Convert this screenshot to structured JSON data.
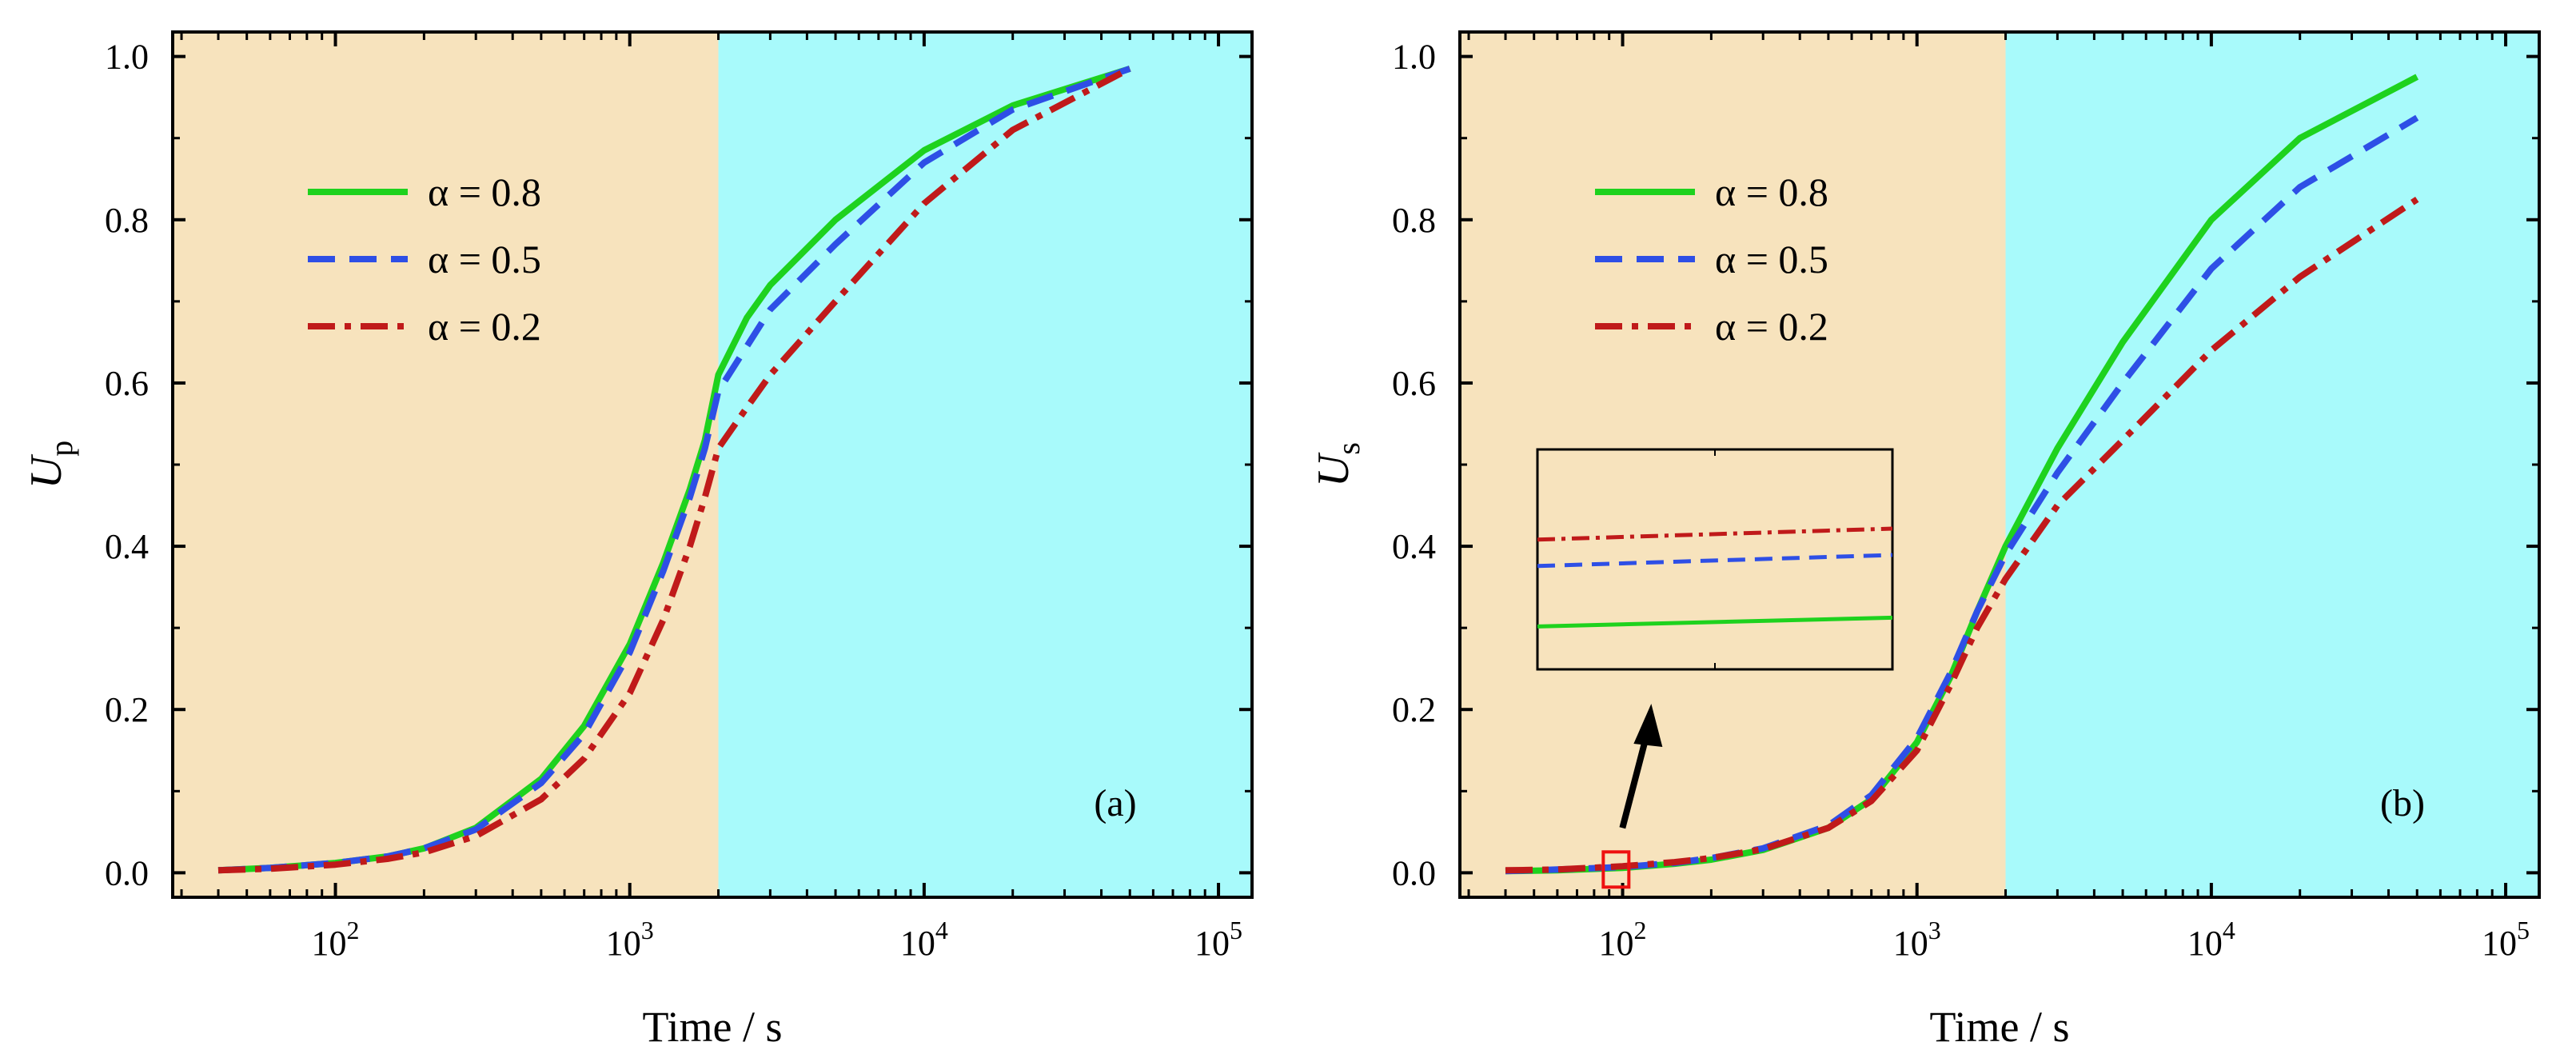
{
  "chart_data": [
    {
      "type": "line",
      "panel_label": "(a)",
      "xlabel": "Time / s",
      "ylabel": "U",
      "ylabel_sub": "p",
      "xscale": "log",
      "xlim": [
        28,
        130000
      ],
      "ylim": [
        -0.03,
        1.03
      ],
      "yticks": [
        0.0,
        0.2,
        0.4,
        0.6,
        0.8,
        1.0
      ],
      "ytick_labels": [
        "0.0",
        "0.2",
        "0.4",
        "0.6",
        "0.8",
        "1.0"
      ],
      "xtick_exponents": [
        2,
        3,
        4,
        5
      ],
      "xtick_base": "10",
      "regions": [
        {
          "from": 28,
          "to": 2000,
          "color": "#f7e3bd"
        },
        {
          "from": 2000,
          "to": 130000,
          "color": "#a8fafb"
        }
      ],
      "legend_position": "upper-left",
      "series": [
        {
          "name": "α = 0.8",
          "color": "#1ed21e",
          "style": "solid",
          "x": [
            40,
            60,
            100,
            150,
            200,
            300,
            500,
            700,
            1000,
            1300,
            1600,
            1800,
            2000,
            2500,
            3000,
            5000,
            10000,
            20000,
            50000
          ],
          "y": [
            0.003,
            0.006,
            0.012,
            0.02,
            0.03,
            0.055,
            0.115,
            0.18,
            0.28,
            0.38,
            0.47,
            0.53,
            0.61,
            0.68,
            0.72,
            0.8,
            0.885,
            0.94,
            0.985
          ]
        },
        {
          "name": "α = 0.5",
          "color": "#2e4fe6",
          "style": "dashed",
          "x": [
            40,
            60,
            100,
            150,
            200,
            300,
            500,
            700,
            1000,
            1300,
            1600,
            1800,
            2000,
            2500,
            3000,
            5000,
            10000,
            20000,
            50000
          ],
          "y": [
            0.003,
            0.006,
            0.012,
            0.02,
            0.03,
            0.053,
            0.11,
            0.17,
            0.27,
            0.37,
            0.46,
            0.52,
            0.59,
            0.645,
            0.69,
            0.77,
            0.87,
            0.935,
            0.985
          ]
        },
        {
          "name": "α = 0.2",
          "color": "#c01a1a",
          "style": "dashdot",
          "x": [
            40,
            60,
            100,
            150,
            200,
            300,
            500,
            700,
            1000,
            1300,
            1600,
            1800,
            2000,
            2500,
            3000,
            5000,
            10000,
            20000,
            50000
          ],
          "y": [
            0.003,
            0.005,
            0.01,
            0.017,
            0.025,
            0.045,
            0.09,
            0.14,
            0.22,
            0.31,
            0.4,
            0.46,
            0.52,
            0.57,
            0.61,
            0.7,
            0.82,
            0.91,
            0.985
          ]
        }
      ]
    },
    {
      "type": "line",
      "panel_label": "(b)",
      "xlabel": "Time / s",
      "ylabel": "U",
      "ylabel_sub": "s",
      "xscale": "log",
      "xlim": [
        28,
        130000
      ],
      "ylim": [
        -0.03,
        1.03
      ],
      "yticks": [
        0.0,
        0.2,
        0.4,
        0.6,
        0.8,
        1.0
      ],
      "ytick_labels": [
        "0.0",
        "0.2",
        "0.4",
        "0.6",
        "0.8",
        "1.0"
      ],
      "xtick_exponents": [
        2,
        3,
        4,
        5
      ],
      "xtick_base": "10",
      "regions": [
        {
          "from": 28,
          "to": 2000,
          "color": "#f7e3bd"
        },
        {
          "from": 2000,
          "to": 130000,
          "color": "#a8fafb"
        }
      ],
      "legend_position": "upper-left",
      "annotations": {
        "highlight_box_at": {
          "x": 95,
          "y": 0.004
        },
        "inset": "zoomed view near t ≈ 10^2 s; α = 0.2 highest, α = 0.5 middle, α = 0.8 lowest"
      },
      "series": [
        {
          "name": "α = 0.8",
          "color": "#1ed21e",
          "style": "solid",
          "x": [
            40,
            60,
            100,
            150,
            200,
            300,
            500,
            700,
            1000,
            1300,
            1600,
            2000,
            3000,
            5000,
            10000,
            20000,
            50000
          ],
          "y": [
            0.002,
            0.003,
            0.006,
            0.011,
            0.016,
            0.028,
            0.055,
            0.09,
            0.16,
            0.24,
            0.32,
            0.4,
            0.52,
            0.65,
            0.8,
            0.9,
            0.975
          ]
        },
        {
          "name": "α = 0.5",
          "color": "#2e4fe6",
          "style": "dashed",
          "x": [
            40,
            60,
            100,
            150,
            200,
            300,
            500,
            700,
            1000,
            1300,
            1600,
            2000,
            3000,
            5000,
            10000,
            20000,
            50000
          ],
          "y": [
            0.002,
            0.004,
            0.007,
            0.012,
            0.018,
            0.03,
            0.058,
            0.095,
            0.165,
            0.245,
            0.32,
            0.39,
            0.49,
            0.6,
            0.74,
            0.84,
            0.925
          ]
        },
        {
          "name": "α = 0.2",
          "color": "#c01a1a",
          "style": "dashdot",
          "x": [
            40,
            60,
            100,
            150,
            200,
            300,
            500,
            700,
            1000,
            1300,
            1600,
            2000,
            3000,
            5000,
            10000,
            20000,
            50000
          ],
          "y": [
            0.003,
            0.004,
            0.008,
            0.013,
            0.018,
            0.029,
            0.055,
            0.088,
            0.15,
            0.23,
            0.3,
            0.36,
            0.45,
            0.53,
            0.64,
            0.73,
            0.825
          ]
        }
      ]
    }
  ]
}
